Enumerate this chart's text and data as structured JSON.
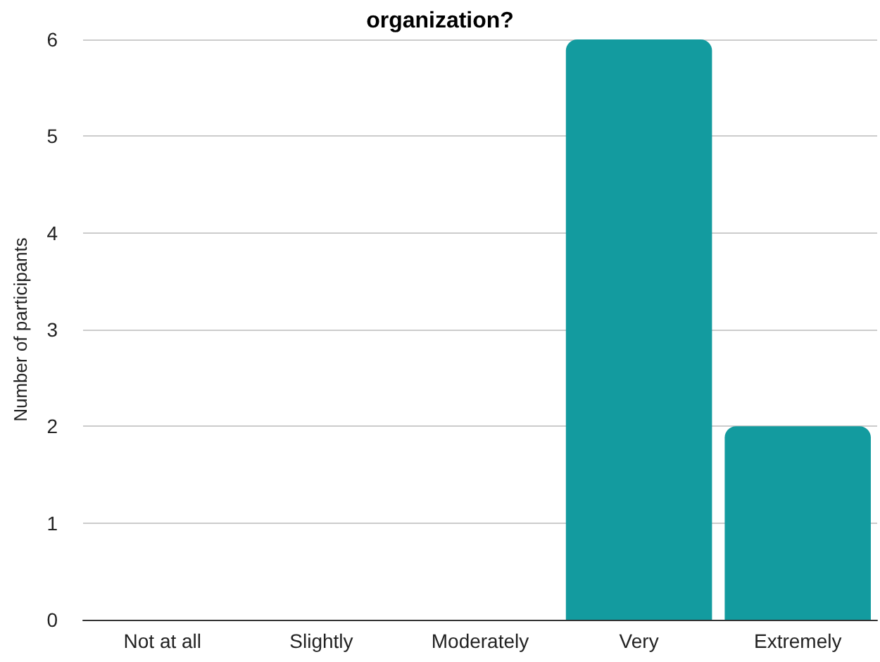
{
  "chart_data": {
    "type": "bar",
    "title": "organization?",
    "ylabel": "Number of participants",
    "categories": [
      "Not at all",
      "Slightly",
      "Moderately",
      "Very",
      "Extremely"
    ],
    "values": [
      0,
      0,
      0,
      6,
      2
    ],
    "color": "#139b9f",
    "ylim": [
      0,
      6
    ],
    "yticks": [
      0,
      1,
      2,
      3,
      4,
      5,
      6
    ],
    "grid": "y"
  }
}
